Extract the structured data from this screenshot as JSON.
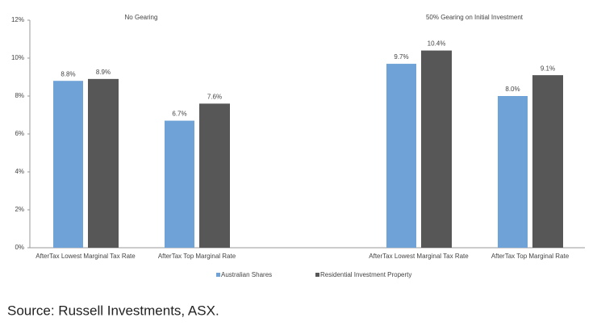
{
  "chart_data": {
    "type": "bar",
    "groups": [
      {
        "title": "No Gearing",
        "categories": [
          "AfterTax Lowest Marginal Tax Rate",
          "AfterTax Top Marginal Rate"
        ]
      },
      {
        "title": "50% Gearing on Initial Investment",
        "categories": [
          "AfterTax Lowest Marginal Tax Rate",
          "AfterTax Top Marginal Rate"
        ]
      }
    ],
    "series": [
      {
        "name": "Australian Shares",
        "color": "#6fa3d8",
        "values": [
          8.8,
          6.7,
          9.7,
          8.0
        ],
        "value_labels": [
          "8.8%",
          "6.7%",
          "9.7%",
          "8.0%"
        ]
      },
      {
        "name": "Residential Investment Property",
        "color": "#575757",
        "values": [
          8.9,
          7.6,
          10.4,
          9.1
        ],
        "value_labels": [
          "8.9%",
          "7.6%",
          "10.4%",
          "9.1%"
        ]
      }
    ],
    "ylim": [
      0,
      12
    ],
    "yticks": [
      {
        "value": 0,
        "label": "0%"
      },
      {
        "value": 2,
        "label": "2%"
      },
      {
        "value": 4,
        "label": "4%"
      },
      {
        "value": 6,
        "label": "6%"
      },
      {
        "value": 8,
        "label": "8%"
      },
      {
        "value": 10,
        "label": "10%"
      },
      {
        "value": 12,
        "label": "12%"
      }
    ],
    "grid": false,
    "legend": "bottom"
  },
  "source": "Source: Russell Investments, ASX."
}
